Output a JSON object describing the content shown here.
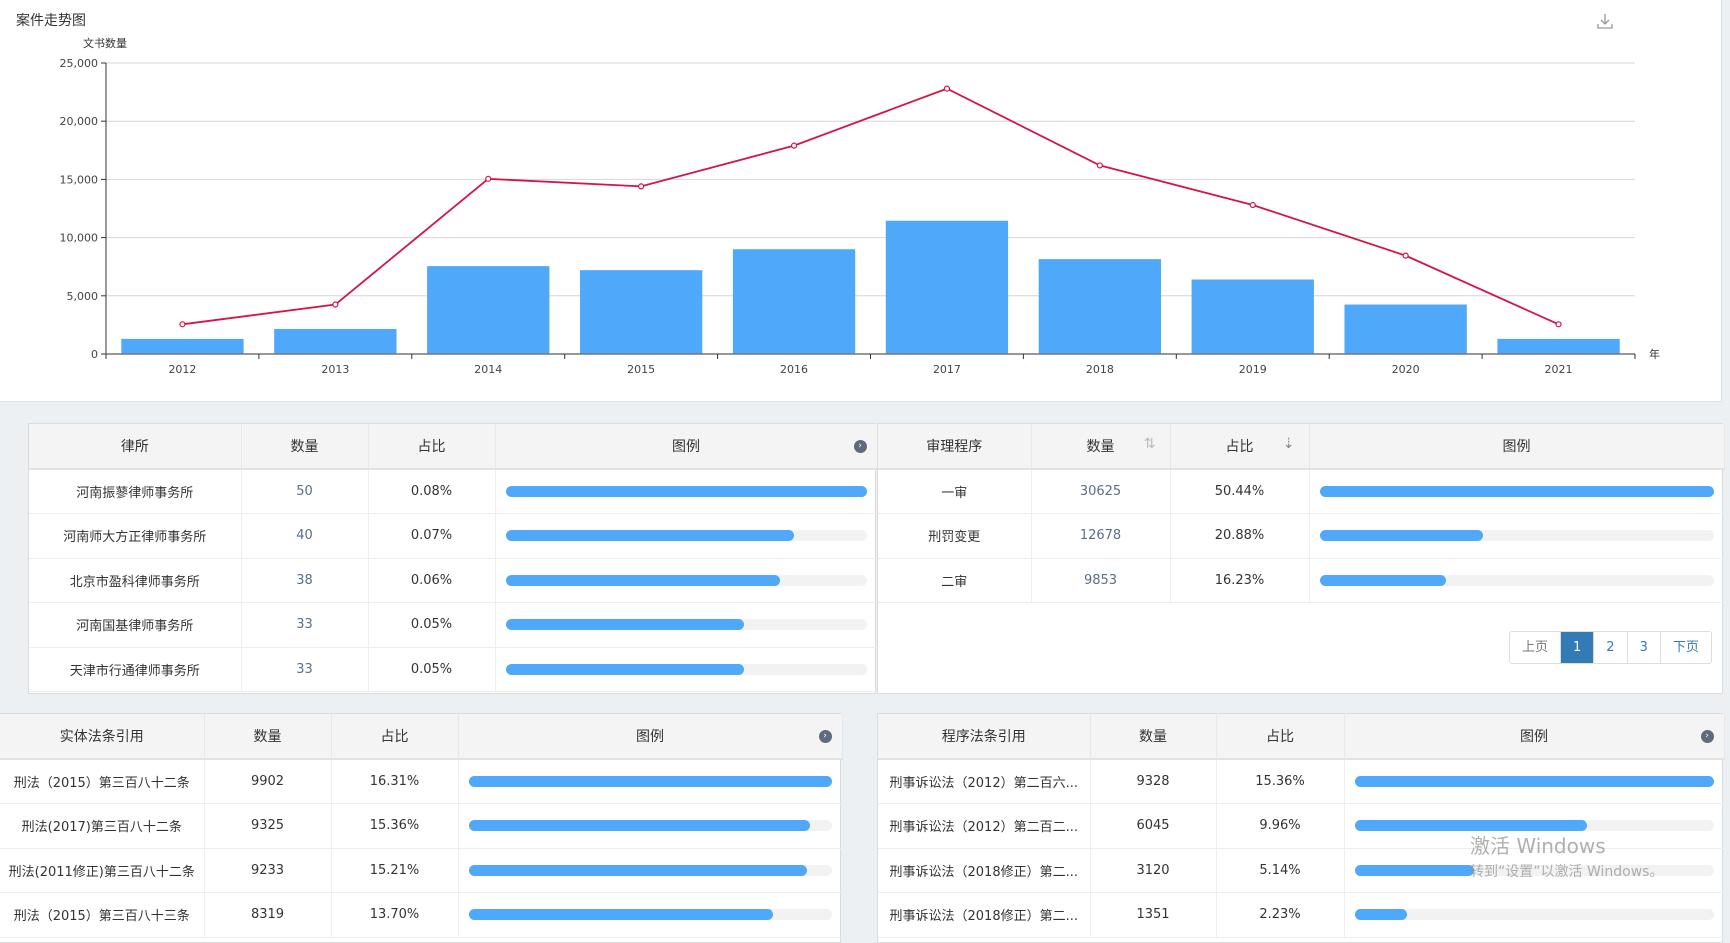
{
  "chart_data": {
    "type": "bar+line",
    "title": "案件走势图",
    "ylabel": "文书数量",
    "xlabel": "年",
    "ylim": [
      0,
      25000
    ],
    "yticks": [
      "0",
      "5,000",
      "10,000",
      "15,000",
      "20,000",
      "25,000"
    ],
    "grid": true,
    "categories": [
      "2012",
      "2013",
      "2014",
      "2015",
      "2016",
      "2017",
      "2018",
      "2019",
      "2020",
      "2021"
    ],
    "series": [
      {
        "type": "bar",
        "color": "#4fa8f9",
        "values": [
          1300,
          2150,
          7550,
          7200,
          9000,
          11450,
          8150,
          6400,
          4250,
          1300
        ]
      },
      {
        "type": "line",
        "color": "#d4144a",
        "values": [
          2550,
          4250,
          15050,
          14400,
          17900,
          22800,
          16200,
          12800,
          8450,
          2550
        ]
      }
    ]
  },
  "toolbar": {
    "download_icon": "download-icon"
  },
  "panels": {
    "lawfirm": {
      "headers": [
        "律所",
        "数量",
        "占比",
        "图例"
      ],
      "rows": [
        {
          "name": "河南振蓼律师事务所",
          "count": "50",
          "pct": "0.08%"
        },
        {
          "name": "河南师大方正律师事务所",
          "count": "40",
          "pct": "0.07%"
        },
        {
          "name": "北京市盈科律师事务所",
          "count": "38",
          "pct": "0.06%"
        },
        {
          "name": "河南国基律师事务所",
          "count": "33",
          "pct": "0.05%"
        },
        {
          "name": "天津市行通律师事务所",
          "count": "33",
          "pct": "0.05%"
        }
      ]
    },
    "procedure": {
      "headers": [
        "审理程序",
        "数量",
        "占比",
        "图例"
      ],
      "rows": [
        {
          "name": "一审",
          "count": "30625",
          "pct": "50.44%"
        },
        {
          "name": "刑罚变更",
          "count": "12678",
          "pct": "20.88%"
        },
        {
          "name": "二审",
          "count": "9853",
          "pct": "16.23%"
        }
      ],
      "pager": {
        "prev": "上页",
        "pages": [
          "1",
          "2",
          "3"
        ],
        "current": "1",
        "next": "下页"
      }
    },
    "substantive": {
      "headers": [
        "实体法条引用",
        "数量",
        "占比",
        "图例"
      ],
      "rows": [
        {
          "name": "刑法（2015）第三百八十二条",
          "count": "9902",
          "pct": "16.31%"
        },
        {
          "name": "刑法(2017)第三百八十二条",
          "count": "9325",
          "pct": "15.36%"
        },
        {
          "name": "刑法(2011修正)第三百八十二条",
          "count": "9233",
          "pct": "15.21%"
        },
        {
          "name": "刑法（2015）第三百八十三条",
          "count": "8319",
          "pct": "13.70%"
        }
      ]
    },
    "procedural": {
      "headers": [
        "程序法条引用",
        "数量",
        "占比",
        "图例"
      ],
      "rows": [
        {
          "name": "刑事诉讼法（2012）第二百六...",
          "count": "9328",
          "pct": "15.36%"
        },
        {
          "name": "刑事诉讼法（2012）第二百二...",
          "count": "6045",
          "pct": "9.96%"
        },
        {
          "name": "刑事诉讼法（2018修正）第二...",
          "count": "3120",
          "pct": "5.14%"
        },
        {
          "name": "刑事诉讼法（2018修正）第二...",
          "count": "1351",
          "pct": "2.23%"
        }
      ]
    }
  },
  "watermark": {
    "line1": "激活 Windows",
    "line2": "转到“设置”以激活 Windows。"
  }
}
